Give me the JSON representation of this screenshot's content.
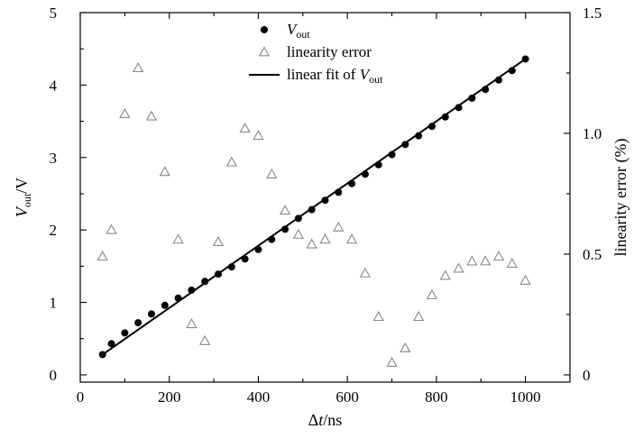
{
  "chart_data": {
    "type": "scatter",
    "x_axis": {
      "label_prefix": "Δ",
      "label_italic": "t",
      "label_suffix": "/ns",
      "range": [
        0,
        1100
      ],
      "ticks": [
        0,
        200,
        400,
        600,
        800,
        1000
      ],
      "tick_labels": [
        "0",
        "200",
        "400",
        "600",
        "800",
        "1000"
      ]
    },
    "y_left": {
      "label_italic": "V",
      "label_sub": "out",
      "label_suffix": "/V",
      "range": [
        -0.1,
        5
      ],
      "ticks": [
        0,
        1,
        2,
        3,
        4,
        5
      ],
      "tick_labels": [
        "0",
        "1",
        "2",
        "3",
        "4",
        "5"
      ]
    },
    "y_right": {
      "label": "linearity error (%)",
      "range": [
        -0.03,
        1.5
      ],
      "ticks": [
        0,
        0.5,
        1.0,
        1.5
      ],
      "tick_labels": [
        "0",
        "0.5",
        "1.0",
        "1.5"
      ]
    },
    "legend": {
      "placement": "top-center",
      "items": [
        {
          "marker": "filled-circle",
          "label_italic": "V",
          "label_sub": "out",
          "label_prefix": ""
        },
        {
          "marker": "open-triangle",
          "label_prefix": "linearity error",
          "label_italic": "",
          "label_sub": ""
        },
        {
          "marker": "line",
          "label_prefix": "linear fit of ",
          "label_italic": "V",
          "label_sub": "out"
        }
      ]
    },
    "series": [
      {
        "name": "Vout",
        "axis": "left",
        "marker": "filled-circle",
        "color": "#000000",
        "x": [
          50,
          70,
          100,
          130,
          160,
          190,
          220,
          250,
          280,
          310,
          340,
          370,
          400,
          430,
          460,
          490,
          520,
          550,
          580,
          610,
          640,
          670,
          700,
          730,
          760,
          790,
          820,
          850,
          880,
          910,
          940,
          970,
          1000
        ],
        "y": [
          0.28,
          0.43,
          0.58,
          0.72,
          0.84,
          0.96,
          1.06,
          1.17,
          1.29,
          1.39,
          1.49,
          1.6,
          1.73,
          1.87,
          2.01,
          2.16,
          2.28,
          2.41,
          2.52,
          2.64,
          2.77,
          2.9,
          3.04,
          3.18,
          3.3,
          3.43,
          3.56,
          3.69,
          3.82,
          3.94,
          4.07,
          4.2,
          4.36
        ]
      },
      {
        "name": "linearity error",
        "axis": "right",
        "marker": "open-triangle",
        "color": "#888888",
        "x": [
          50,
          70,
          100,
          130,
          160,
          190,
          220,
          250,
          280,
          310,
          340,
          370,
          400,
          430,
          460,
          490,
          520,
          550,
          580,
          610,
          640,
          670,
          700,
          730,
          760,
          790,
          820,
          850,
          880,
          910,
          940,
          970,
          1000
        ],
        "y": [
          0.49,
          0.6,
          1.08,
          1.27,
          1.07,
          0.84,
          0.56,
          0.21,
          0.14,
          0.55,
          0.88,
          1.02,
          0.99,
          0.83,
          0.68,
          0.58,
          0.54,
          0.56,
          0.61,
          0.56,
          0.42,
          0.24,
          0.05,
          0.11,
          0.24,
          0.33,
          0.41,
          0.44,
          0.47,
          0.47,
          0.49,
          0.46,
          0.39
        ]
      },
      {
        "name": "linear fit of Vout",
        "axis": "left",
        "type": "line",
        "color": "#000000",
        "x": [
          50,
          1000
        ],
        "y": [
          0.28,
          4.36
        ]
      }
    ],
    "grid": false
  }
}
